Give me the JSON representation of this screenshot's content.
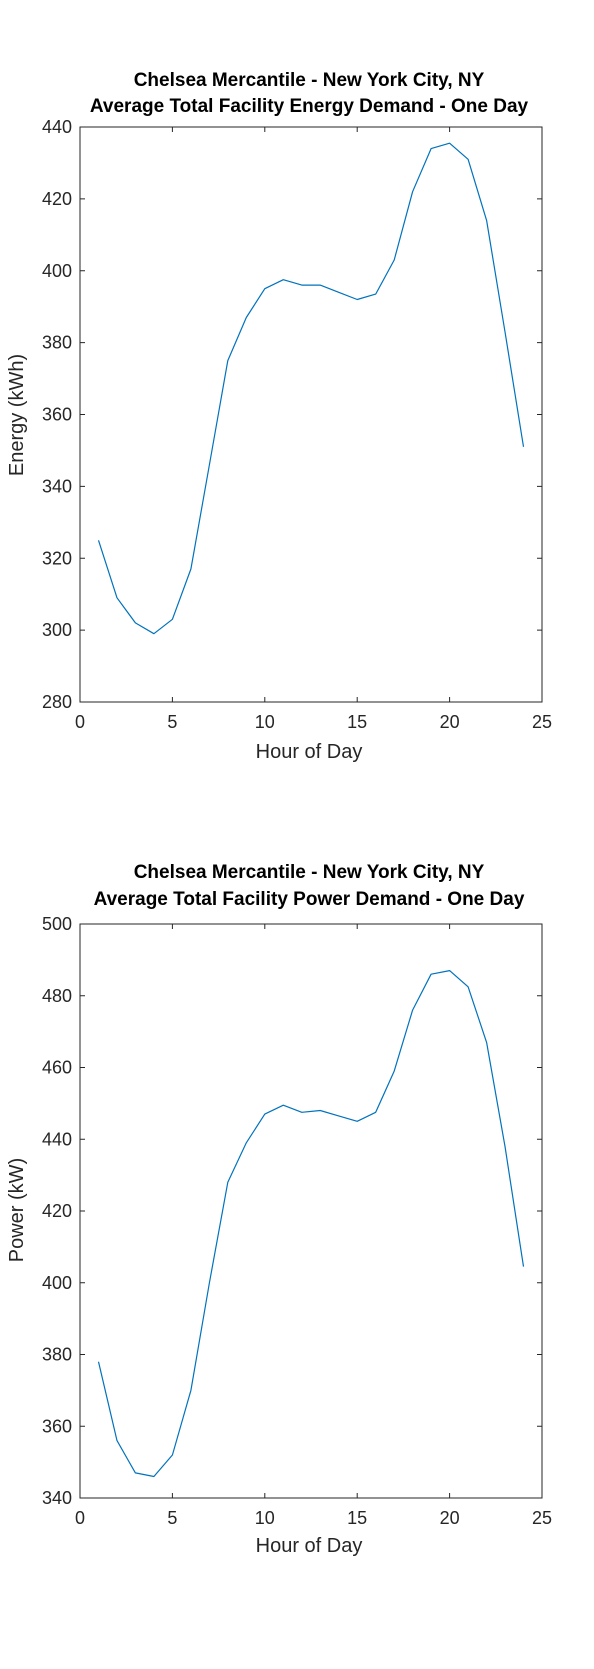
{
  "chart_data": [
    {
      "type": "line",
      "title": "Chelsea Mercantile - New York City, NY",
      "subtitle": "Average Total Facility Energy Demand - One Day",
      "xlabel": "Hour of Day",
      "ylabel": "Energy (kWh)",
      "xlim": [
        0,
        25
      ],
      "ylim": [
        280,
        440
      ],
      "xticks": [
        0,
        5,
        10,
        15,
        20,
        25
      ],
      "yticks": [
        280,
        300,
        320,
        340,
        360,
        380,
        400,
        420,
        440
      ],
      "grid": false,
      "line_color": "#0072BD",
      "x": [
        1,
        2,
        3,
        4,
        5,
        6,
        7,
        8,
        9,
        10,
        11,
        12,
        13,
        14,
        15,
        16,
        17,
        18,
        19,
        20,
        21,
        22,
        23,
        24
      ],
      "values": [
        325,
        309,
        302,
        299,
        303,
        317,
        346,
        375,
        387,
        395,
        397.5,
        396,
        396,
        394,
        392,
        393.5,
        403,
        422,
        434,
        435.5,
        431,
        414,
        383,
        351
      ]
    },
    {
      "type": "line",
      "title": "Chelsea Mercantile - New York City, NY",
      "subtitle": "Average Total Facility Power Demand - One Day",
      "xlabel": "Hour of Day",
      "ylabel": "Power (kW)",
      "xlim": [
        0,
        25
      ],
      "ylim": [
        340,
        500
      ],
      "xticks": [
        0,
        5,
        10,
        15,
        20,
        25
      ],
      "yticks": [
        340,
        360,
        380,
        400,
        420,
        440,
        460,
        480,
        500
      ],
      "grid": false,
      "line_color": "#0072BD",
      "x": [
        1,
        2,
        3,
        4,
        5,
        6,
        7,
        8,
        9,
        10,
        11,
        12,
        13,
        14,
        15,
        16,
        17,
        18,
        19,
        20,
        21,
        22,
        23,
        24
      ],
      "values": [
        378,
        356,
        347,
        346,
        352,
        370,
        400,
        428,
        439,
        447,
        449.5,
        447.5,
        448,
        446.5,
        445,
        447.5,
        459,
        476,
        486,
        487,
        482.5,
        467,
        438,
        404.5
      ]
    }
  ]
}
